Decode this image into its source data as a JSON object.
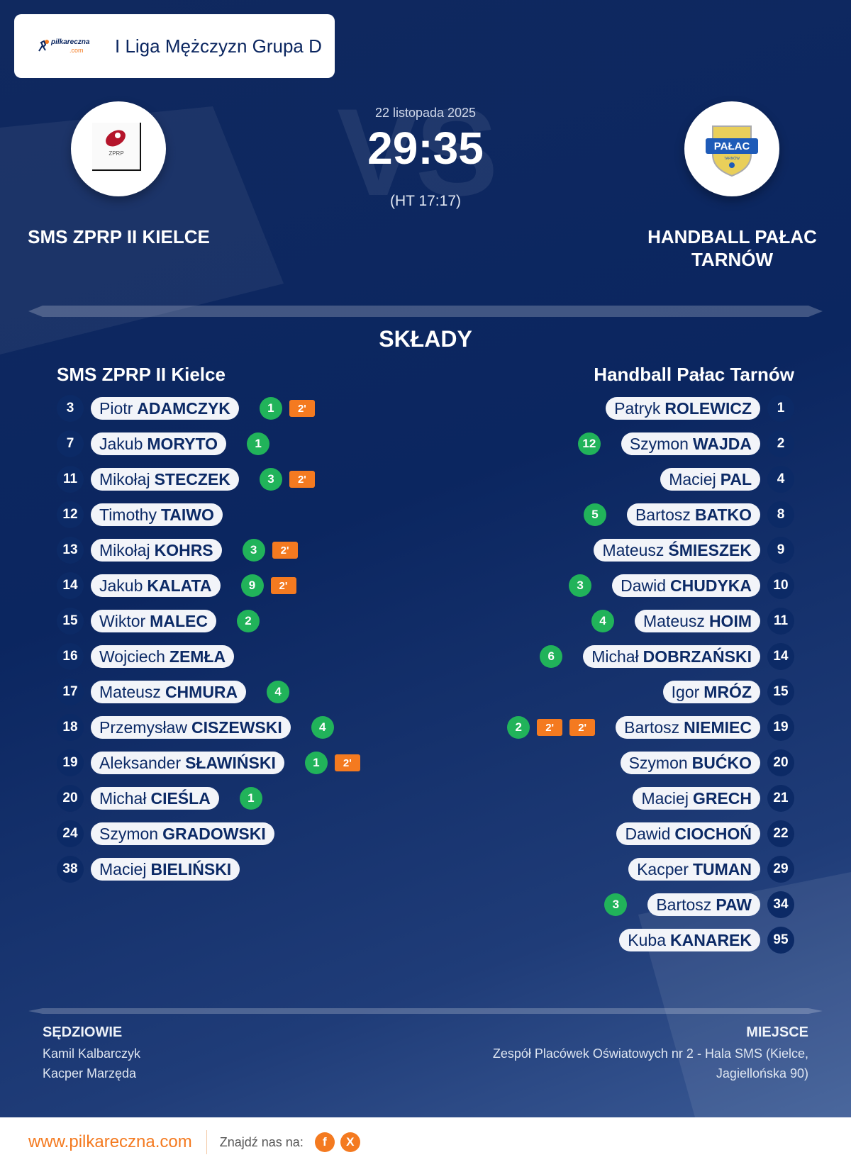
{
  "header": {
    "logo_brand": "pilkareczna",
    "logo_domain": ".com",
    "league": "I Liga Mężczyzn Grupa D"
  },
  "match": {
    "date": "22 listopada 2025",
    "score": "29:35",
    "halftime": "(HT 17:17)",
    "vs_watermark": "VS"
  },
  "home_team": {
    "name_upper": "SMS ZPRP II KIELCE",
    "name": "SMS ZPRP II Kielce",
    "logo_text": "ZPRP",
    "logo_color": "#b5152b"
  },
  "away_team": {
    "name_upper_line1": "HANDBALL PAŁAC",
    "name_upper_line2": "TARNÓW",
    "name": "Handball Pałac Tarnów",
    "logo_text": "PAŁAC",
    "logo_subtext": "TARNÓW",
    "logo_color": "#1e5bb8"
  },
  "lineups_title": "SKŁADY",
  "home_players": [
    {
      "number": "3",
      "first": "Piotr",
      "last": "ADAMCZYK",
      "goals": "1",
      "penalties": [
        "2'"
      ]
    },
    {
      "number": "7",
      "first": "Jakub",
      "last": "MORYTO",
      "goals": "1",
      "penalties": []
    },
    {
      "number": "11",
      "first": "Mikołaj",
      "last": "STECZEK",
      "goals": "3",
      "penalties": [
        "2'"
      ]
    },
    {
      "number": "12",
      "first": "Timothy",
      "last": "TAIWO",
      "goals": null,
      "penalties": []
    },
    {
      "number": "13",
      "first": "Mikołaj",
      "last": "KOHRS",
      "goals": "3",
      "penalties": [
        "2'"
      ]
    },
    {
      "number": "14",
      "first": "Jakub",
      "last": "KALATA",
      "goals": "9",
      "penalties": [
        "2'"
      ]
    },
    {
      "number": "15",
      "first": "Wiktor",
      "last": "MALEC",
      "goals": "2",
      "penalties": []
    },
    {
      "number": "16",
      "first": "Wojciech",
      "last": "ZEMŁA",
      "goals": null,
      "penalties": []
    },
    {
      "number": "17",
      "first": "Mateusz",
      "last": "CHMURA",
      "goals": "4",
      "penalties": []
    },
    {
      "number": "18",
      "first": "Przemysław",
      "last": "CISZEWSKI",
      "goals": "4",
      "penalties": []
    },
    {
      "number": "19",
      "first": "Aleksander",
      "last": "SŁAWIŃSKI",
      "goals": "1",
      "penalties": [
        "2'"
      ]
    },
    {
      "number": "20",
      "first": "Michał",
      "last": "CIEŚLA",
      "goals": "1",
      "penalties": []
    },
    {
      "number": "24",
      "first": "Szymon",
      "last": "GRADOWSKI",
      "goals": null,
      "penalties": []
    },
    {
      "number": "38",
      "first": "Maciej",
      "last": "BIELIŃSKI",
      "goals": null,
      "penalties": []
    }
  ],
  "away_players": [
    {
      "number": "1",
      "first": "Patryk",
      "last": "ROLEWICZ",
      "goals": null,
      "penalties": []
    },
    {
      "number": "2",
      "first": "Szymon",
      "last": "WAJDA",
      "goals": "12",
      "penalties": []
    },
    {
      "number": "4",
      "first": "Maciej",
      "last": "PAL",
      "goals": null,
      "penalties": []
    },
    {
      "number": "8",
      "first": "Bartosz",
      "last": "BATKO",
      "goals": "5",
      "penalties": []
    },
    {
      "number": "9",
      "first": "Mateusz",
      "last": "ŚMIESZEK",
      "goals": null,
      "penalties": []
    },
    {
      "number": "10",
      "first": "Dawid",
      "last": "CHUDYKA",
      "goals": "3",
      "penalties": []
    },
    {
      "number": "11",
      "first": "Mateusz",
      "last": "HOIM",
      "goals": "4",
      "penalties": []
    },
    {
      "number": "14",
      "first": "Michał",
      "last": "DOBRZAŃSKI",
      "goals": "6",
      "penalties": []
    },
    {
      "number": "15",
      "first": "Igor",
      "last": "MRÓZ",
      "goals": null,
      "penalties": []
    },
    {
      "number": "19",
      "first": "Bartosz",
      "last": "NIEMIEC",
      "goals": "2",
      "penalties": [
        "2'",
        "2'"
      ]
    },
    {
      "number": "20",
      "first": "Szymon",
      "last": "BUĆKO",
      "goals": null,
      "penalties": []
    },
    {
      "number": "21",
      "first": "Maciej",
      "last": "GRECH",
      "goals": null,
      "penalties": []
    },
    {
      "number": "22",
      "first": "Dawid",
      "last": "CIOCHOŃ",
      "goals": null,
      "penalties": []
    },
    {
      "number": "29",
      "first": "Kacper",
      "last": "TUMAN",
      "goals": null,
      "penalties": []
    },
    {
      "number": "34",
      "first": "Bartosz",
      "last": "PAW",
      "goals": "3",
      "penalties": []
    },
    {
      "number": "95",
      "first": "Kuba",
      "last": "KANAREK",
      "goals": null,
      "penalties": []
    }
  ],
  "referees": {
    "label": "SĘDZIOWIE",
    "names": [
      "Kamil Kalbarczyk",
      "Kacper Marzęda"
    ]
  },
  "venue": {
    "label": "MIEJSCE",
    "line1": "Zespół Placówek Oświatowych nr 2 - Hala SMS (Kielce,",
    "line2": "Jagiellońska 90)"
  },
  "footer": {
    "site": "www.pilkareczna.com",
    "find_us": "Znajdź nas na:",
    "facebook": "f",
    "x": "X"
  },
  "colors": {
    "navy": "#0c2a66",
    "goal_green": "#21b35a",
    "penalty_orange": "#f47a20"
  }
}
